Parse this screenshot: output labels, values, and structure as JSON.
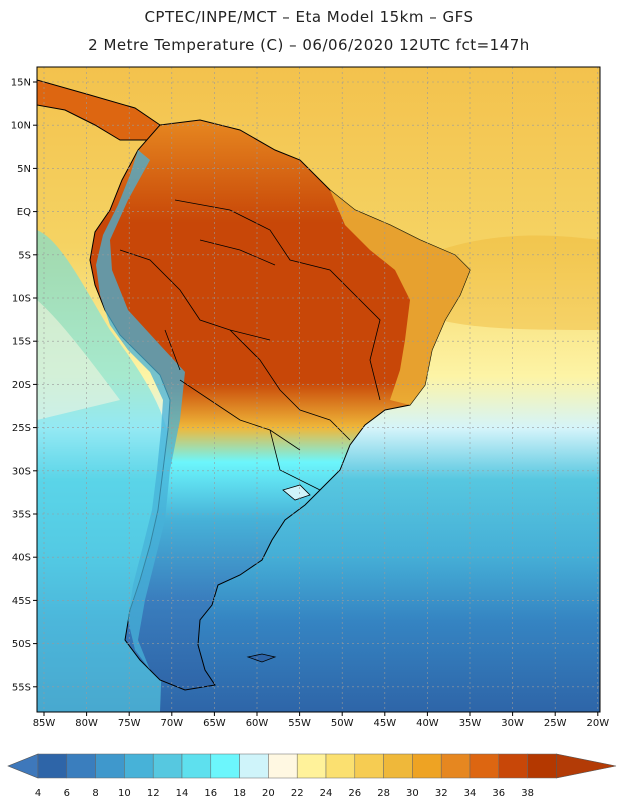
{
  "header": {
    "line1": "CPTEC/INPE/MCT –  Eta Model 15km – GFS",
    "line2": "2 Metre Temperature (C) – 06/06/2020 12UTC fct=147h"
  },
  "axes": {
    "lat_labels": [
      "15N",
      "10N",
      "5N",
      "EQ",
      "5S",
      "10S",
      "15S",
      "20S",
      "25S",
      "30S",
      "35S",
      "40S",
      "45S",
      "50S",
      "55S"
    ],
    "lon_labels": [
      "85W",
      "80W",
      "75W",
      "70W",
      "65W",
      "60W",
      "55W",
      "50W",
      "45W",
      "40W",
      "35W",
      "30W",
      "25W",
      "20W"
    ]
  },
  "colorbar": {
    "ticks": [
      "4",
      "6",
      "8",
      "10",
      "12",
      "14",
      "16",
      "18",
      "20",
      "22",
      "24",
      "26",
      "28",
      "30",
      "32",
      "34",
      "36",
      "38"
    ],
    "colors": [
      "#2e65a8",
      "#3a7ebe",
      "#3f98cc",
      "#47b2d8",
      "#56c8e0",
      "#5ee0ee",
      "#6cf6fc",
      "#cff4fa",
      "#fff8e2",
      "#fff29a",
      "#fbe070",
      "#f6cc52",
      "#efb83a",
      "#eea323",
      "#e68720",
      "#dd6611",
      "#c84708",
      "#b43800"
    ],
    "low_color": "#3e78bb",
    "high_color": "#b33b06"
  }
}
